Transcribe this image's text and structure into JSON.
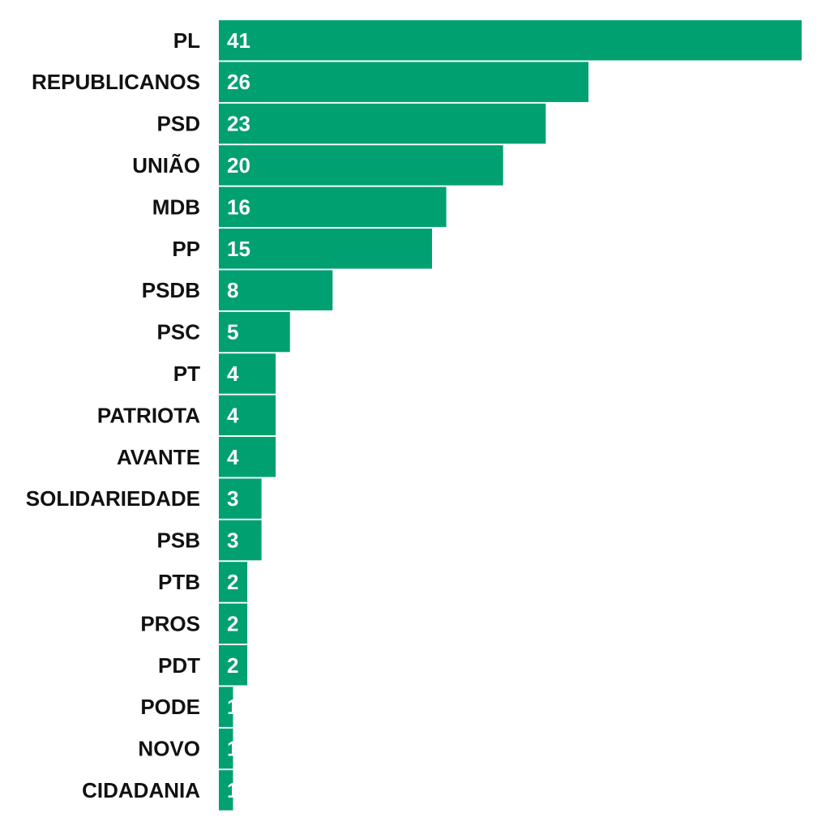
{
  "chart_data": {
    "type": "bar",
    "orientation": "horizontal",
    "title": "",
    "xlabel": "",
    "ylabel": "",
    "categories": [
      "PL",
      "REPUBLICANOS",
      "PSD",
      "UNIÃO",
      "MDB",
      "PP",
      "PSDB",
      "PSC",
      "PT",
      "PATRIOTA",
      "AVANTE",
      "SOLIDARIEDADE",
      "PSB",
      "PTB",
      "PROS",
      "PDT",
      "PODE",
      "NOVO",
      "CIDADANIA"
    ],
    "values": [
      41,
      26,
      23,
      20,
      16,
      15,
      8,
      5,
      4,
      4,
      4,
      3,
      3,
      2,
      2,
      2,
      1,
      1,
      1
    ],
    "value_labels": [
      "41",
      "26",
      "23",
      "20",
      "16",
      "15",
      "8",
      "5",
      "4",
      "4",
      "4",
      "3",
      "3",
      "2",
      "2",
      "2",
      "1",
      "1",
      "1"
    ],
    "xlim": [
      0,
      41
    ],
    "grid": false,
    "legend": "none",
    "bar_color": "#00A070"
  }
}
